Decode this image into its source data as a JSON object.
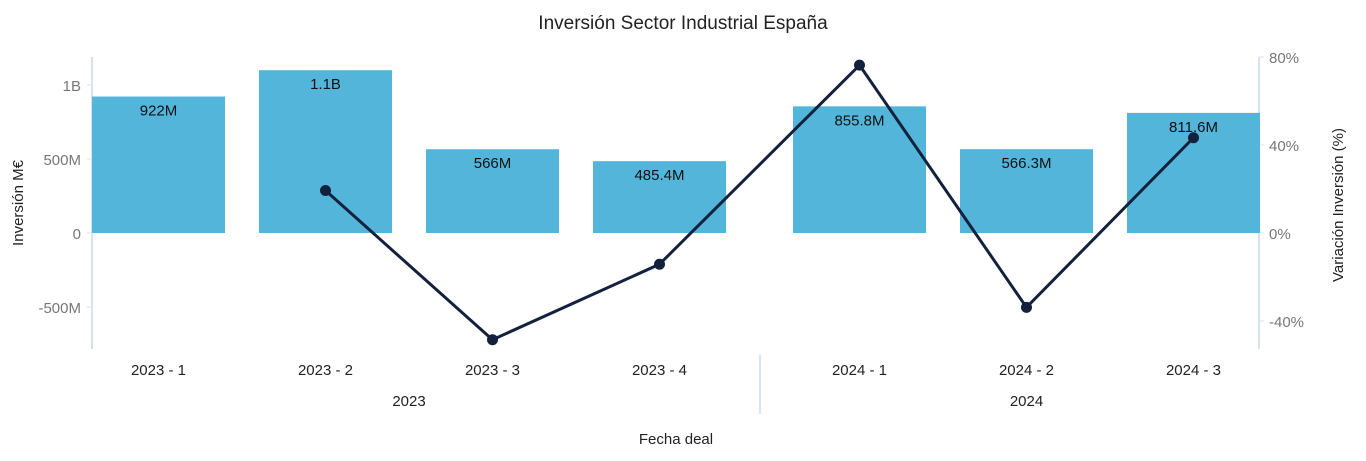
{
  "chart_data": {
    "type": "bar+line",
    "title": "Inversión Sector Industrial España",
    "xlabel": "Fecha deal",
    "ylabel_left": "Inversión M€",
    "ylabel_right": "Variación Inversión (%)",
    "categories": [
      "2023 - 1",
      "2023 - 2",
      "2023 - 3",
      "2023 - 4",
      "2024 - 1",
      "2024 - 2",
      "2024 - 3"
    ],
    "groups": [
      {
        "label": "2023",
        "count": 4
      },
      {
        "label": "2024",
        "count": 3
      }
    ],
    "series": [
      {
        "name": "Inversión M€",
        "type": "bar",
        "axis": "left",
        "color": "#52b5d9",
        "values": [
          922,
          1100,
          566,
          485.4,
          855.8,
          566.3,
          811.6
        ],
        "labels": [
          "922M",
          "1.1B",
          "566M",
          "485.4M",
          "855.8M",
          "566.3M",
          "811.6M"
        ]
      },
      {
        "name": "Variación Inversión (%)",
        "type": "line",
        "axis": "right",
        "color": "#14213d",
        "values": [
          null,
          19.3,
          -48.5,
          -14.2,
          76.3,
          -33.8,
          43.3
        ]
      }
    ],
    "left_axis": {
      "range": [
        -780,
        1190
      ],
      "ticks": [
        -500,
        0,
        500,
        1000
      ],
      "tick_labels": [
        "-500M",
        "0",
        "500M",
        "1B"
      ]
    },
    "right_axis": {
      "range": [
        -53,
        80
      ],
      "ticks": [
        -40,
        0,
        40,
        80
      ],
      "tick_labels": [
        "-40%",
        "0%",
        "40%",
        "80%"
      ]
    },
    "grid": false,
    "legend": "none"
  }
}
